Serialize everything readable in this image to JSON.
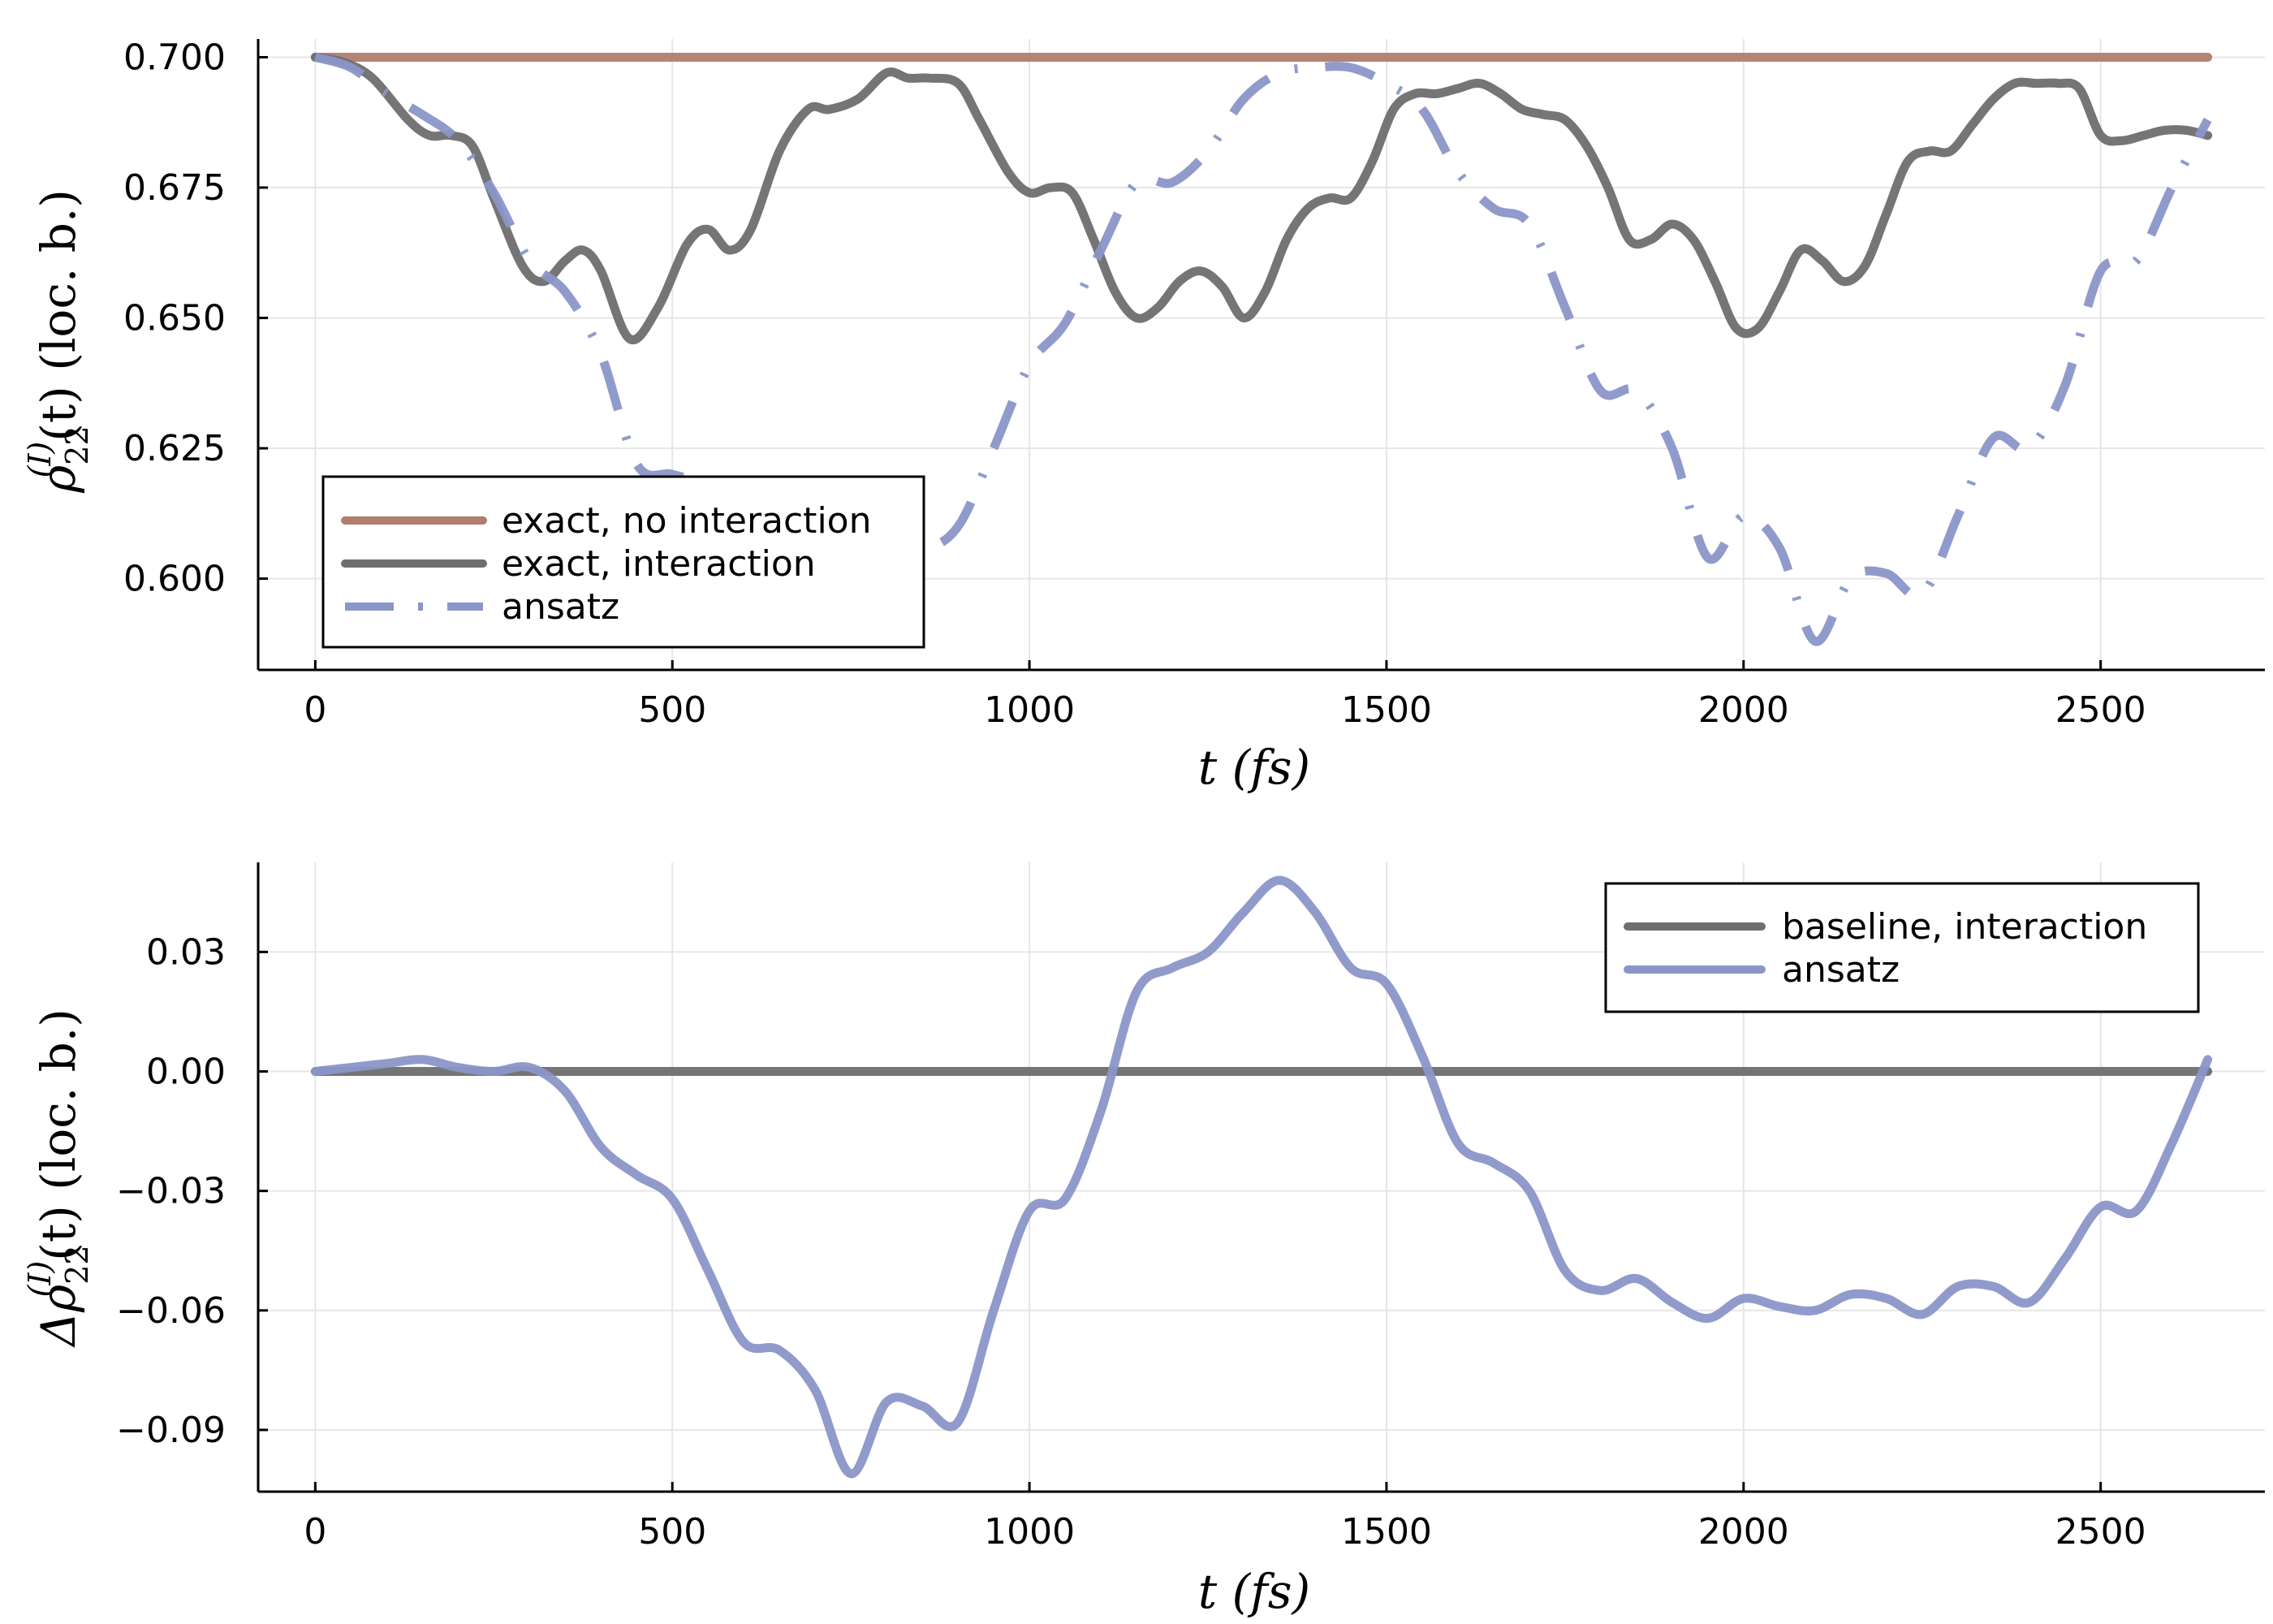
{
  "chart_data": [
    {
      "type": "line",
      "xlabel": "t (fs)",
      "ylabel": "ρ22(I)(t) (loc. b.)",
      "ylabel_parts": {
        "base": "ρ",
        "sub": "22",
        "sup": "(I)",
        "rest": "(t) (loc. b.)"
      },
      "xlim": [
        -80,
        2730
      ],
      "ylim": [
        0.5825,
        0.7035
      ],
      "xticks": [
        0,
        500,
        1000,
        1500,
        2000,
        2500
      ],
      "xtick_labels": [
        "0",
        "500",
        "1000",
        "1500",
        "2000",
        "2500"
      ],
      "yticks": [
        0.6,
        0.625,
        0.65,
        0.675,
        0.7
      ],
      "ytick_labels": [
        "0.600",
        "0.625",
        "0.650",
        "0.675",
        "0.700"
      ],
      "grid": true,
      "legend_position": "bottom-left",
      "series": [
        {
          "name": "exact, no interaction",
          "color": "#b07d6e",
          "dash": "solid",
          "x": [
            0,
            2650
          ],
          "y": [
            0.7,
            0.7
          ]
        },
        {
          "name": "exact, interaction",
          "color": "#6e6e6e",
          "dash": "solid",
          "x": [
            0,
            40,
            80,
            130,
            160,
            190,
            220,
            250,
            290,
            320,
            350,
            375,
            400,
            440,
            480,
            520,
            550,
            580,
            610,
            650,
            690,
            720,
            760,
            800,
            830,
            860,
            900,
            930,
            970,
            1000,
            1030,
            1060,
            1090,
            1120,
            1150,
            1180,
            1210,
            1240,
            1270,
            1300,
            1330,
            1360,
            1390,
            1420,
            1450,
            1480,
            1510,
            1540,
            1570,
            1600,
            1630,
            1660,
            1690,
            1720,
            1750,
            1780,
            1810,
            1840,
            1870,
            1900,
            1930,
            1960,
            1990,
            2020,
            2050,
            2080,
            2110,
            2140,
            2170,
            2200,
            2230,
            2260,
            2290,
            2320,
            2350,
            2380,
            2410,
            2440,
            2470,
            2500,
            2530,
            2560,
            2590,
            2620,
            2650
          ],
          "y": [
            0.7,
            0.699,
            0.696,
            0.688,
            0.685,
            0.685,
            0.683,
            0.673,
            0.66,
            0.657,
            0.661,
            0.663,
            0.659,
            0.646,
            0.652,
            0.664,
            0.667,
            0.663,
            0.667,
            0.682,
            0.69,
            0.69,
            0.692,
            0.697,
            0.696,
            0.696,
            0.695,
            0.688,
            0.678,
            0.674,
            0.675,
            0.674,
            0.665,
            0.655,
            0.65,
            0.652,
            0.657,
            0.659,
            0.656,
            0.65,
            0.655,
            0.665,
            0.671,
            0.673,
            0.673,
            0.68,
            0.69,
            0.693,
            0.693,
            0.694,
            0.695,
            0.693,
            0.69,
            0.689,
            0.688,
            0.683,
            0.675,
            0.665,
            0.665,
            0.668,
            0.665,
            0.657,
            0.648,
            0.648,
            0.655,
            0.663,
            0.661,
            0.657,
            0.66,
            0.67,
            0.68,
            0.682,
            0.682,
            0.687,
            0.692,
            0.695,
            0.695,
            0.695,
            0.694,
            0.685,
            0.684,
            0.685,
            0.686,
            0.686,
            0.685
          ]
        },
        {
          "name": "ansatz",
          "color": "#8a96c9",
          "dash": "long-dash-dot",
          "x": [
            0,
            50,
            100,
            150,
            200,
            250,
            300,
            350,
            400,
            450,
            500,
            550,
            600,
            650,
            700,
            750,
            800,
            850,
            900,
            950,
            1000,
            1050,
            1100,
            1150,
            1200,
            1250,
            1300,
            1350,
            1400,
            1450,
            1500,
            1550,
            1600,
            1650,
            1700,
            1750,
            1800,
            1850,
            1900,
            1950,
            2000,
            2050,
            2100,
            2150,
            2200,
            2250,
            2300,
            2350,
            2400,
            2450,
            2500,
            2550,
            2600,
            2650
          ],
          "y": [
            0.7,
            0.698,
            0.693,
            0.689,
            0.684,
            0.674,
            0.661,
            0.655,
            0.643,
            0.622,
            0.62,
            0.618,
            0.614,
            0.614,
            0.612,
            0.612,
            0.61,
            0.606,
            0.61,
            0.625,
            0.641,
            0.649,
            0.663,
            0.676,
            0.676,
            0.682,
            0.692,
            0.697,
            0.698,
            0.698,
            0.695,
            0.69,
            0.678,
            0.671,
            0.668,
            0.652,
            0.636,
            0.636,
            0.625,
            0.604,
            0.612,
            0.606,
            0.588,
            0.6,
            0.601,
            0.597,
            0.612,
            0.627,
            0.625,
            0.637,
            0.659,
            0.661,
            0.675,
            0.688
          ]
        }
      ]
    },
    {
      "type": "line",
      "xlabel": "t (fs)",
      "ylabel": "Δρ22(I)(t) (loc. b.)",
      "ylabel_parts": {
        "base": "Δρ",
        "sub": "22",
        "sup": "(I)",
        "rest": "(t) (loc. b.)"
      },
      "xlim": [
        -80,
        2730
      ],
      "ylim": [
        -0.1055,
        0.0525
      ],
      "xticks": [
        0,
        500,
        1000,
        1500,
        2000,
        2500
      ],
      "xtick_labels": [
        "0",
        "500",
        "1000",
        "1500",
        "2000",
        "2500"
      ],
      "yticks": [
        -0.09,
        -0.06,
        -0.03,
        0.0,
        0.03
      ],
      "ytick_labels": [
        "−0.09",
        "−0.06",
        "−0.03",
        "0.00",
        "0.03"
      ],
      "grid": true,
      "legend_position": "top-right",
      "series": [
        {
          "name": "baseline, interaction",
          "color": "#6e6e6e",
          "dash": "solid",
          "x": [
            0,
            2650
          ],
          "y": [
            0.0,
            0.0
          ]
        },
        {
          "name": "ansatz",
          "color": "#8a96c9",
          "dash": "solid",
          "x": [
            0,
            50,
            100,
            150,
            200,
            250,
            300,
            350,
            400,
            450,
            500,
            550,
            600,
            650,
            700,
            750,
            800,
            850,
            900,
            950,
            1000,
            1050,
            1100,
            1150,
            1200,
            1250,
            1300,
            1350,
            1400,
            1450,
            1500,
            1550,
            1600,
            1650,
            1700,
            1750,
            1800,
            1850,
            1900,
            1950,
            2000,
            2050,
            2100,
            2150,
            2200,
            2250,
            2300,
            2350,
            2400,
            2450,
            2500,
            2550,
            2600,
            2650
          ],
          "y": [
            0.0,
            0.001,
            0.002,
            0.003,
            0.001,
            0.0,
            0.001,
            -0.005,
            -0.019,
            -0.026,
            -0.032,
            -0.05,
            -0.068,
            -0.07,
            -0.08,
            -0.101,
            -0.083,
            -0.084,
            -0.088,
            -0.06,
            -0.035,
            -0.032,
            -0.01,
            0.02,
            0.026,
            0.03,
            0.04,
            0.048,
            0.04,
            0.026,
            0.022,
            0.004,
            -0.018,
            -0.023,
            -0.03,
            -0.05,
            -0.055,
            -0.052,
            -0.058,
            -0.062,
            -0.057,
            -0.059,
            -0.06,
            -0.056,
            -0.057,
            -0.061,
            -0.054,
            -0.054,
            -0.058,
            -0.047,
            -0.034,
            -0.035,
            -0.018,
            0.003
          ]
        }
      ]
    }
  ]
}
